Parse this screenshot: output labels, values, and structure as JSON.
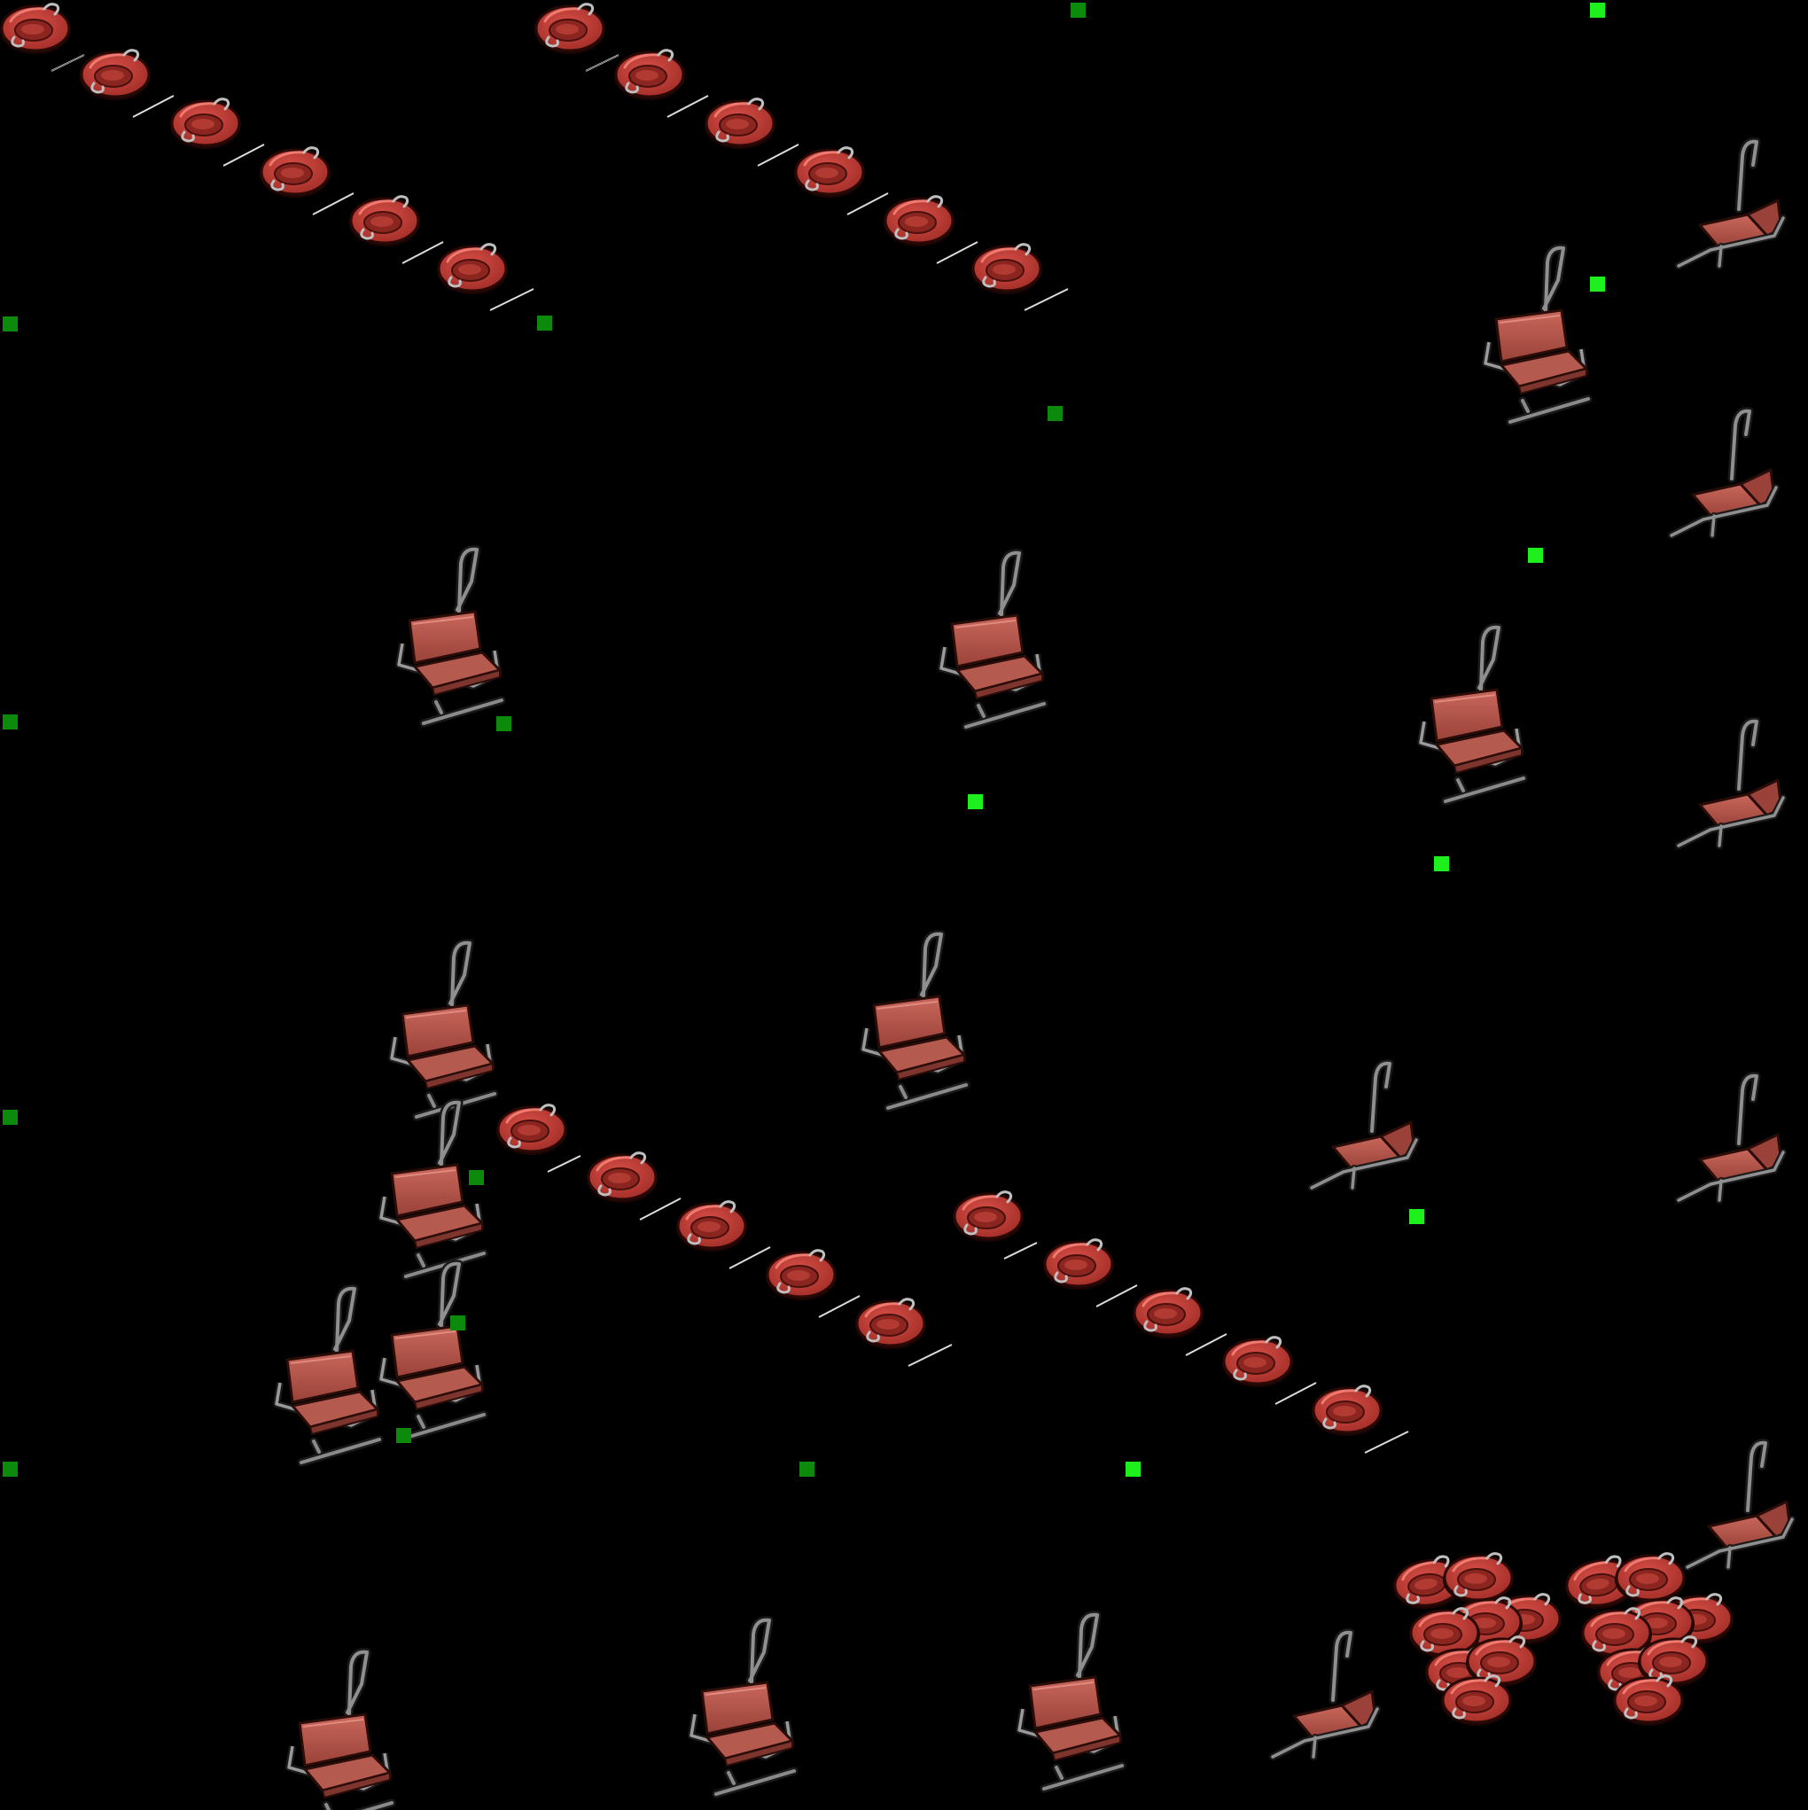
{
  "sprite_sheet": {
    "background": "#000000",
    "colors": {
      "tube_red": "#c0403a",
      "tube_dark": "#7a1e1a",
      "tube_hole": "#8e2b26",
      "seat_red": "#b8574c",
      "seat_dark": "#7d352e",
      "frame_grey": "#8c8c8c",
      "frame_dark": "#3a3a3a",
      "rope": "#d9d9d9",
      "marker_dark": "#0b8a0b",
      "marker_bright": "#1df01d"
    },
    "sprites": [
      {
        "kind": "tube-train",
        "name": "tube-train-top-left"
      },
      {
        "kind": "tube-train",
        "name": "tube-train-top-middle"
      },
      {
        "kind": "tube-train",
        "name": "tube-train-middle-left"
      },
      {
        "kind": "tube-train",
        "name": "tube-train-middle-right"
      },
      {
        "kind": "tube-pile",
        "name": "tube-pile-left"
      },
      {
        "kind": "tube-pile",
        "name": "tube-pile-right"
      },
      {
        "kind": "lift-chair-front",
        "name": "lift-chair-front"
      },
      {
        "kind": "lift-chair-side",
        "name": "lift-chair-side"
      },
      {
        "kind": "anchor-marker",
        "name": "anchor-marker"
      }
    ]
  }
}
